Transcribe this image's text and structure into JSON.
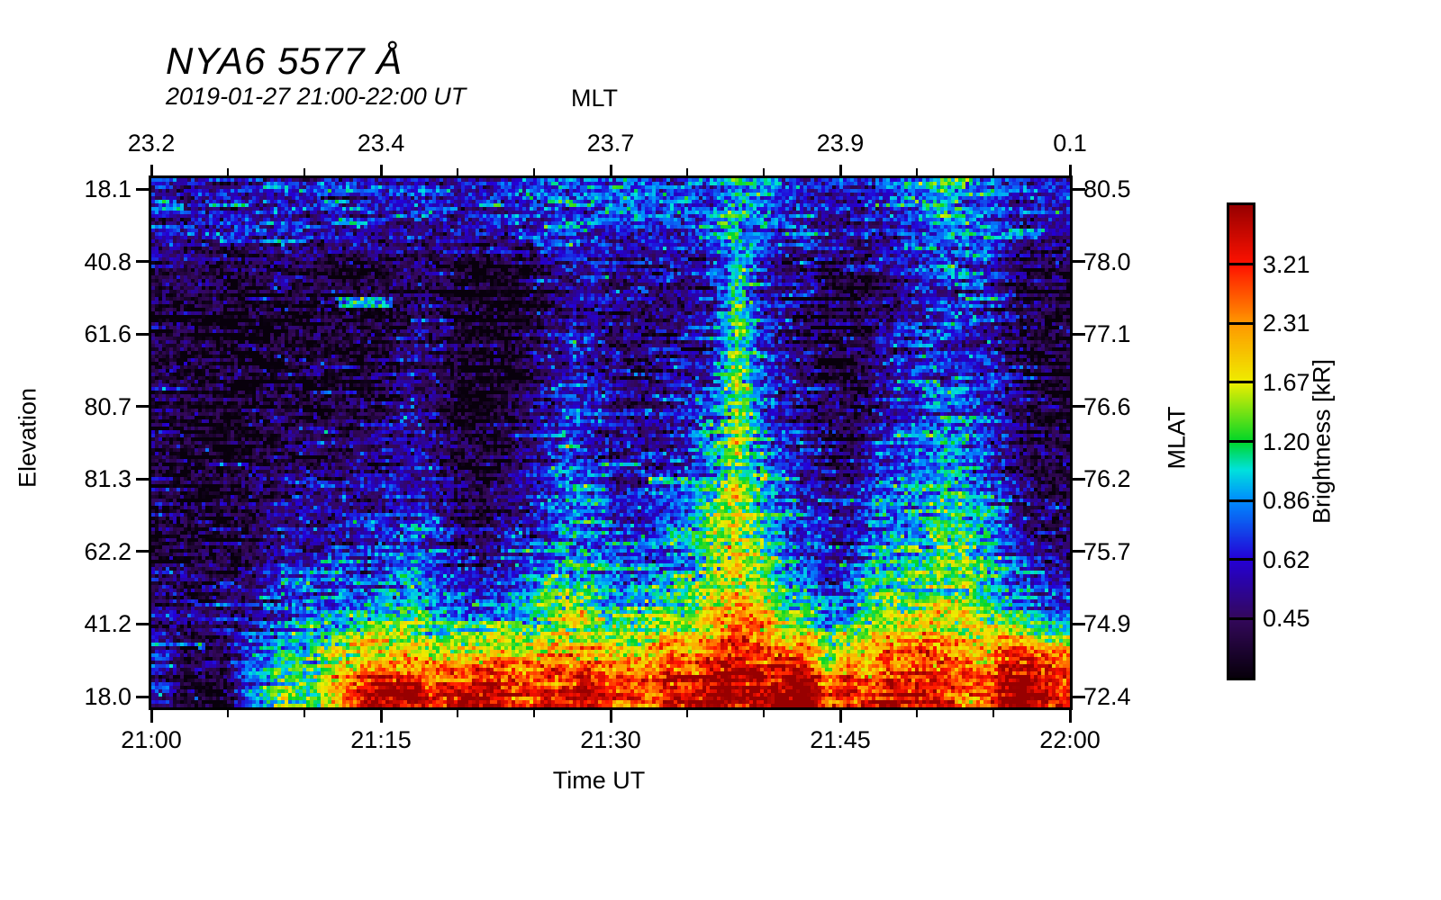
{
  "header": {
    "title": "NYA6 5577 Å",
    "subtitle": "2019-01-27 21:00-22:00 UT"
  },
  "chart_data": {
    "type": "heatmap",
    "title": "NYA6 5577 Å",
    "subtitle": "2019-01-27 21:00-22:00 UT",
    "x_axis_bottom": {
      "label": "Time UT",
      "tick_labels": [
        "21:00",
        "21:15",
        "21:30",
        "21:45",
        "22:00"
      ],
      "minor_tick_interval_minutes": 5
    },
    "x_axis_top": {
      "label": "MLT",
      "tick_labels": [
        "23.2",
        "23.4",
        "23.7",
        "23.9",
        "0.1"
      ]
    },
    "y_axis_left": {
      "label": "Elevation",
      "tick_labels": [
        "18.1",
        "40.8",
        "61.6",
        "80.7",
        "81.3",
        "62.2",
        "41.2",
        "18.0"
      ]
    },
    "y_axis_right": {
      "label": "MLAT",
      "tick_labels": [
        "80.5",
        "78.0",
        "77.1",
        "76.6",
        "76.2",
        "75.7",
        "74.9",
        "72.4"
      ]
    },
    "colorbar": {
      "label": "Brightness [kR]",
      "tick_labels": [
        "3.21",
        "2.31",
        "1.67",
        "1.20",
        "0.86",
        "0.62",
        "0.45"
      ],
      "scale": "log",
      "value_min": 0.324,
      "value_max": 4.46,
      "colormap": [
        [
          0.0,
          "#08000C"
        ],
        [
          0.125,
          "#34085C"
        ],
        [
          0.25,
          "#2400D6"
        ],
        [
          0.375,
          "#008CFF"
        ],
        [
          0.44,
          "#00E2DC"
        ],
        [
          0.5,
          "#00D628"
        ],
        [
          0.625,
          "#EEEE00"
        ],
        [
          0.75,
          "#FF9800"
        ],
        [
          0.875,
          "#FF1200"
        ],
        [
          1.0,
          "#980000"
        ]
      ]
    },
    "grid": {
      "description": "Brightness values in kR; 40 time columns (21:00-22:00 UT, 1.5 min each) x 16 elevation rows (top=north 18.1 deg to bottom=south 18.0 deg), estimated from keogram pixels",
      "time_minutes_range": [
        0,
        60
      ],
      "cols": 40,
      "rows": 16,
      "values_kR": [
        [
          0.62,
          0.6,
          0.62,
          0.61,
          0.63,
          0.62,
          0.6,
          0.62,
          0.63,
          0.62,
          0.63,
          0.66,
          0.63,
          0.6,
          0.62,
          0.66,
          0.7,
          0.74,
          0.78,
          0.8,
          0.76,
          0.72,
          0.72,
          0.74,
          0.82,
          1.0,
          0.85,
          0.72,
          0.68,
          0.66,
          0.63,
          0.62,
          0.7,
          0.85,
          0.95,
          0.92,
          0.88,
          0.72,
          0.64,
          0.62
        ],
        [
          0.58,
          0.56,
          0.58,
          0.58,
          0.59,
          0.58,
          0.56,
          0.58,
          0.59,
          0.58,
          0.59,
          0.62,
          0.59,
          0.55,
          0.56,
          0.6,
          0.64,
          0.68,
          0.72,
          0.73,
          0.69,
          0.66,
          0.66,
          0.68,
          0.76,
          1.05,
          0.78,
          0.64,
          0.61,
          0.59,
          0.57,
          0.58,
          0.64,
          0.78,
          0.88,
          0.85,
          0.8,
          0.64,
          0.57,
          0.56
        ],
        [
          0.46,
          0.44,
          0.42,
          0.41,
          0.43,
          0.45,
          0.44,
          0.42,
          0.41,
          0.42,
          0.44,
          0.52,
          0.46,
          0.38,
          0.36,
          0.38,
          0.42,
          0.5,
          0.58,
          0.6,
          0.54,
          0.5,
          0.52,
          0.54,
          0.62,
          1.1,
          0.68,
          0.52,
          0.48,
          0.44,
          0.42,
          0.46,
          0.54,
          0.62,
          0.72,
          0.7,
          0.64,
          0.5,
          0.42,
          0.41
        ],
        [
          0.42,
          0.4,
          0.38,
          0.36,
          0.38,
          0.4,
          0.39,
          0.38,
          0.38,
          0.39,
          0.4,
          0.48,
          0.42,
          0.34,
          0.33,
          0.35,
          0.39,
          0.46,
          0.54,
          0.55,
          0.48,
          0.44,
          0.47,
          0.5,
          0.58,
          1.15,
          0.63,
          0.48,
          0.44,
          0.4,
          0.38,
          0.43,
          0.51,
          0.58,
          0.68,
          0.65,
          0.58,
          0.45,
          0.38,
          0.37
        ],
        [
          0.4,
          0.38,
          0.36,
          0.34,
          0.36,
          0.38,
          0.38,
          0.37,
          0.37,
          0.38,
          0.4,
          0.46,
          0.41,
          0.33,
          0.32,
          0.35,
          0.4,
          0.48,
          0.57,
          0.53,
          0.46,
          0.44,
          0.48,
          0.52,
          0.6,
          1.2,
          0.66,
          0.5,
          0.44,
          0.39,
          0.37,
          0.44,
          0.54,
          0.6,
          0.7,
          0.67,
          0.6,
          0.44,
          0.37,
          0.36
        ],
        [
          0.39,
          0.37,
          0.35,
          0.33,
          0.35,
          0.38,
          0.39,
          0.38,
          0.38,
          0.39,
          0.41,
          0.48,
          0.42,
          0.34,
          0.33,
          0.36,
          0.42,
          0.52,
          0.62,
          0.55,
          0.48,
          0.46,
          0.51,
          0.56,
          0.65,
          1.3,
          0.7,
          0.53,
          0.46,
          0.4,
          0.38,
          0.48,
          0.58,
          0.64,
          0.74,
          0.7,
          0.62,
          0.46,
          0.38,
          0.36
        ],
        [
          0.39,
          0.36,
          0.34,
          0.33,
          0.35,
          0.38,
          0.4,
          0.39,
          0.4,
          0.41,
          0.43,
          0.51,
          0.44,
          0.35,
          0.34,
          0.38,
          0.44,
          0.56,
          0.66,
          0.58,
          0.5,
          0.48,
          0.54,
          0.6,
          0.72,
          1.4,
          0.76,
          0.56,
          0.48,
          0.41,
          0.39,
          0.52,
          0.62,
          0.68,
          0.78,
          0.74,
          0.64,
          0.48,
          0.39,
          0.37
        ],
        [
          0.39,
          0.36,
          0.34,
          0.34,
          0.37,
          0.4,
          0.42,
          0.41,
          0.42,
          0.44,
          0.47,
          0.55,
          0.46,
          0.37,
          0.35,
          0.4,
          0.48,
          0.61,
          0.7,
          0.6,
          0.52,
          0.51,
          0.58,
          0.65,
          0.82,
          1.45,
          0.84,
          0.6,
          0.51,
          0.43,
          0.41,
          0.58,
          0.68,
          0.73,
          0.84,
          0.79,
          0.67,
          0.5,
          0.4,
          0.38
        ],
        [
          0.4,
          0.37,
          0.35,
          0.35,
          0.39,
          0.42,
          0.45,
          0.44,
          0.45,
          0.47,
          0.51,
          0.6,
          0.49,
          0.39,
          0.37,
          0.43,
          0.52,
          0.66,
          0.76,
          0.64,
          0.55,
          0.55,
          0.63,
          0.72,
          0.95,
          1.55,
          0.93,
          0.65,
          0.55,
          0.46,
          0.43,
          0.64,
          0.74,
          0.79,
          0.92,
          0.86,
          0.71,
          0.53,
          0.42,
          0.39
        ],
        [
          0.41,
          0.38,
          0.36,
          0.37,
          0.41,
          0.45,
          0.49,
          0.48,
          0.49,
          0.52,
          0.56,
          0.66,
          0.53,
          0.42,
          0.4,
          0.47,
          0.57,
          0.72,
          0.83,
          0.7,
          0.6,
          0.6,
          0.69,
          0.8,
          1.1,
          1.65,
          1.02,
          0.71,
          0.6,
          0.5,
          0.47,
          0.71,
          0.82,
          0.87,
          1.0,
          0.94,
          0.77,
          0.57,
          0.45,
          0.42
        ],
        [
          0.42,
          0.4,
          0.38,
          0.39,
          0.44,
          0.49,
          0.54,
          0.53,
          0.54,
          0.57,
          0.62,
          0.73,
          0.58,
          0.46,
          0.44,
          0.52,
          0.63,
          0.8,
          0.92,
          0.77,
          0.66,
          0.67,
          0.77,
          0.89,
          1.28,
          1.7,
          1.12,
          0.79,
          0.66,
          0.55,
          0.52,
          0.8,
          0.91,
          0.97,
          1.12,
          1.04,
          0.85,
          0.62,
          0.49,
          0.46
        ],
        [
          0.44,
          0.42,
          0.41,
          0.42,
          0.48,
          0.54,
          0.6,
          0.6,
          0.61,
          0.64,
          0.7,
          0.81,
          0.65,
          0.52,
          0.5,
          0.59,
          0.71,
          0.89,
          1.02,
          0.86,
          0.74,
          0.76,
          0.87,
          1.0,
          1.48,
          1.68,
          1.25,
          0.89,
          0.74,
          0.62,
          0.59,
          0.91,
          1.02,
          1.1,
          1.28,
          1.18,
          0.95,
          0.7,
          0.55,
          0.51
        ],
        [
          0.46,
          0.45,
          0.44,
          0.46,
          0.54,
          0.62,
          0.7,
          0.71,
          0.73,
          0.77,
          0.84,
          0.95,
          0.78,
          0.63,
          0.61,
          0.72,
          0.86,
          1.05,
          1.18,
          1.02,
          0.89,
          0.92,
          1.04,
          1.2,
          1.72,
          1.75,
          1.42,
          1.05,
          0.88,
          0.68,
          0.72,
          1.08,
          1.2,
          1.3,
          1.55,
          1.4,
          1.12,
          0.85,
          0.67,
          0.62
        ],
        [
          0.48,
          0.48,
          0.49,
          0.53,
          0.64,
          0.76,
          0.89,
          0.98,
          1.05,
          1.12,
          1.22,
          1.35,
          1.15,
          0.92,
          0.92,
          1.08,
          1.28,
          1.48,
          1.68,
          1.42,
          1.28,
          1.35,
          1.48,
          1.35,
          2.05,
          2.6,
          2.3,
          1.45,
          1.25,
          0.88,
          1.2,
          1.52,
          1.65,
          1.8,
          2.2,
          1.95,
          1.5,
          1.25,
          1.02,
          0.92
        ],
        [
          0.5,
          0.51,
          0.54,
          0.62,
          0.8,
          1.0,
          1.25,
          1.45,
          1.62,
          1.78,
          1.95,
          2.15,
          1.92,
          1.72,
          1.82,
          2.02,
          2.35,
          2.55,
          2.3,
          2.1,
          2.15,
          2.38,
          2.55,
          1.85,
          2.45,
          3.6,
          3.0,
          2.55,
          2.45,
          1.28,
          2.3,
          2.45,
          2.6,
          2.8,
          3.2,
          2.95,
          2.6,
          2.75,
          2.55,
          2.4
        ],
        [
          0.42,
          0.44,
          0.48,
          0.58,
          0.8,
          1.1,
          1.55,
          2.0,
          2.45,
          2.85,
          3.2,
          3.55,
          3.4,
          3.05,
          3.25,
          3.55,
          3.95,
          4.15,
          3.75,
          3.5,
          3.6,
          3.9,
          4.1,
          2.9,
          3.7,
          4.5,
          4.15,
          3.9,
          3.7,
          2.3,
          4.05,
          3.6,
          3.9,
          3.5,
          4.5,
          4.4,
          4.0,
          4.3,
          4.1,
          3.8
        ]
      ]
    },
    "thin_streaks": [
      {
        "t0": 12.3,
        "t1": 15.8,
        "y_frac": 0.235,
        "value_kR": 0.85
      },
      {
        "t0": 32.5,
        "t1": 36.3,
        "y_frac": 0.57,
        "value_kR": 0.95
      },
      {
        "t0": 3.0,
        "t1": 3.6,
        "y_frac": 0.885,
        "value_kR": 0.95
      }
    ]
  }
}
